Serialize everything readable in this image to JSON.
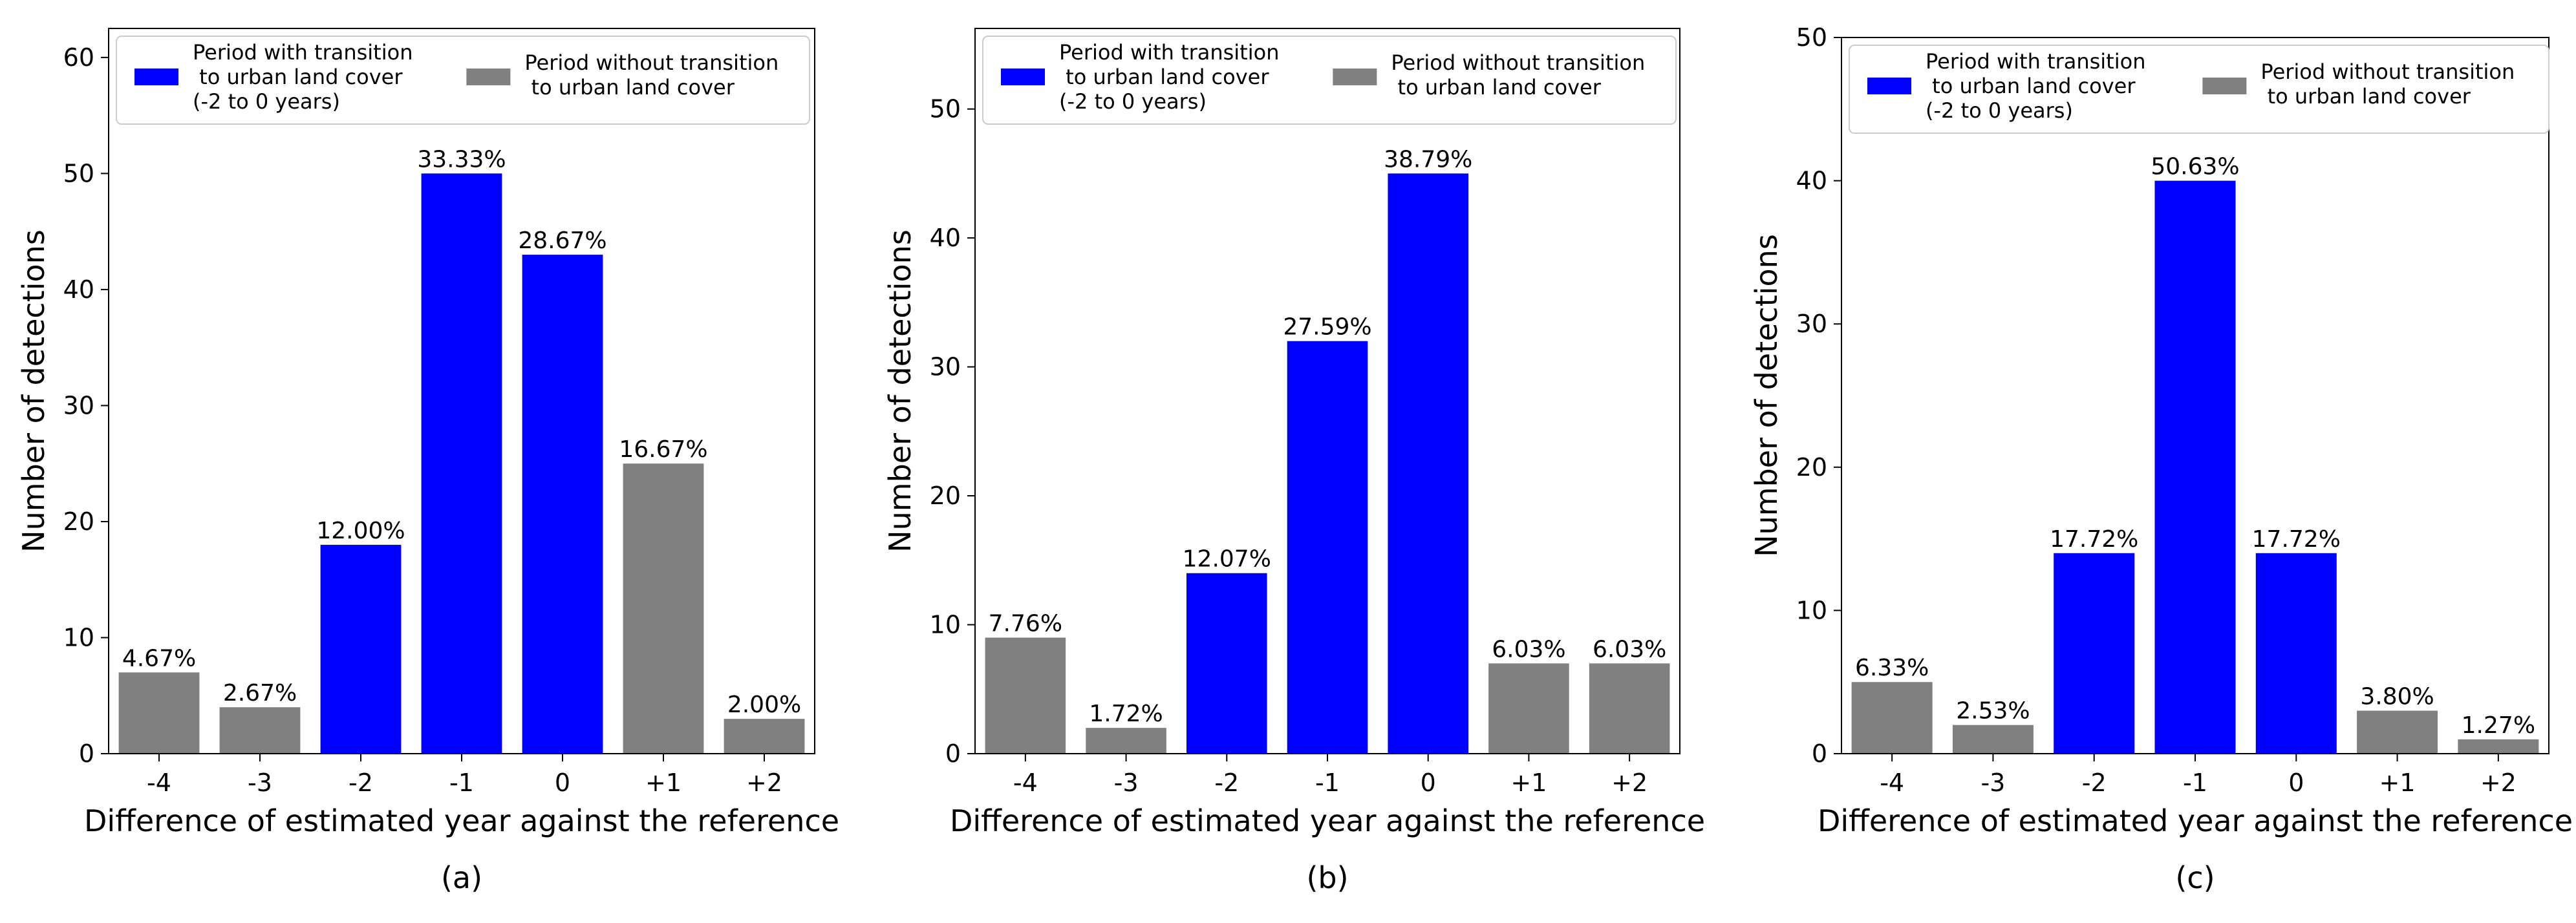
{
  "colors": {
    "transition": "#0000ff",
    "no_transition": "#808080",
    "axis": "#000000",
    "legend_border": "#cccccc"
  },
  "legend": {
    "transition_lines": [
      "Period with transition",
      " to urban land cover",
      "(-2 to 0 years)"
    ],
    "no_transition_lines": [
      "Period without transition",
      " to urban land cover"
    ]
  },
  "chart_data": [
    {
      "type": "bar",
      "panel_label": "(a)",
      "categories": [
        "-4",
        "-3",
        "-2",
        "-1",
        "0",
        "+1",
        "+2"
      ],
      "values": [
        7,
        4,
        18,
        50,
        43,
        25,
        3
      ],
      "percent_labels": [
        "4.67%",
        "2.67%",
        "12.00%",
        "33.33%",
        "28.67%",
        "16.67%",
        "2.00%"
      ],
      "transition": [
        false,
        false,
        true,
        true,
        true,
        false,
        false
      ],
      "xlabel": "Difference of estimated year against the reference",
      "ylabel": "Number of detections",
      "ylim": [
        0,
        62.5
      ],
      "yticks": [
        0,
        10,
        20,
        30,
        40,
        50,
        60
      ],
      "legend_position": "top"
    },
    {
      "type": "bar",
      "panel_label": "(b)",
      "categories": [
        "-4",
        "-3",
        "-2",
        "-1",
        "0",
        "+1",
        "+2"
      ],
      "values": [
        9,
        2,
        14,
        32,
        45,
        7,
        7
      ],
      "percent_labels": [
        "7.76%",
        "1.72%",
        "12.07%",
        "27.59%",
        "38.79%",
        "6.03%",
        "6.03%"
      ],
      "transition": [
        false,
        false,
        true,
        true,
        true,
        false,
        false
      ],
      "xlabel": "Difference of estimated year against the reference",
      "ylabel": "Number of detections",
      "ylim": [
        0,
        56.25
      ],
      "yticks": [
        0,
        10,
        20,
        30,
        40,
        50
      ],
      "legend_position": "top"
    },
    {
      "type": "bar",
      "panel_label": "(c)",
      "categories": [
        "-4",
        "-3",
        "-2",
        "-1",
        "0",
        "+1",
        "+2"
      ],
      "values": [
        5,
        2,
        14,
        40,
        14,
        3,
        1
      ],
      "percent_labels": [
        "6.33%",
        "2.53%",
        "17.72%",
        "50.63%",
        "17.72%",
        "3.80%",
        "1.27%"
      ],
      "transition": [
        false,
        false,
        true,
        true,
        true,
        false,
        false
      ],
      "xlabel": "Difference of estimated year against the reference",
      "ylabel": "Number of detections",
      "ylim": [
        0,
        50
      ],
      "yticks": [
        0,
        10,
        20,
        30,
        40,
        50
      ],
      "legend_position": "top"
    }
  ]
}
